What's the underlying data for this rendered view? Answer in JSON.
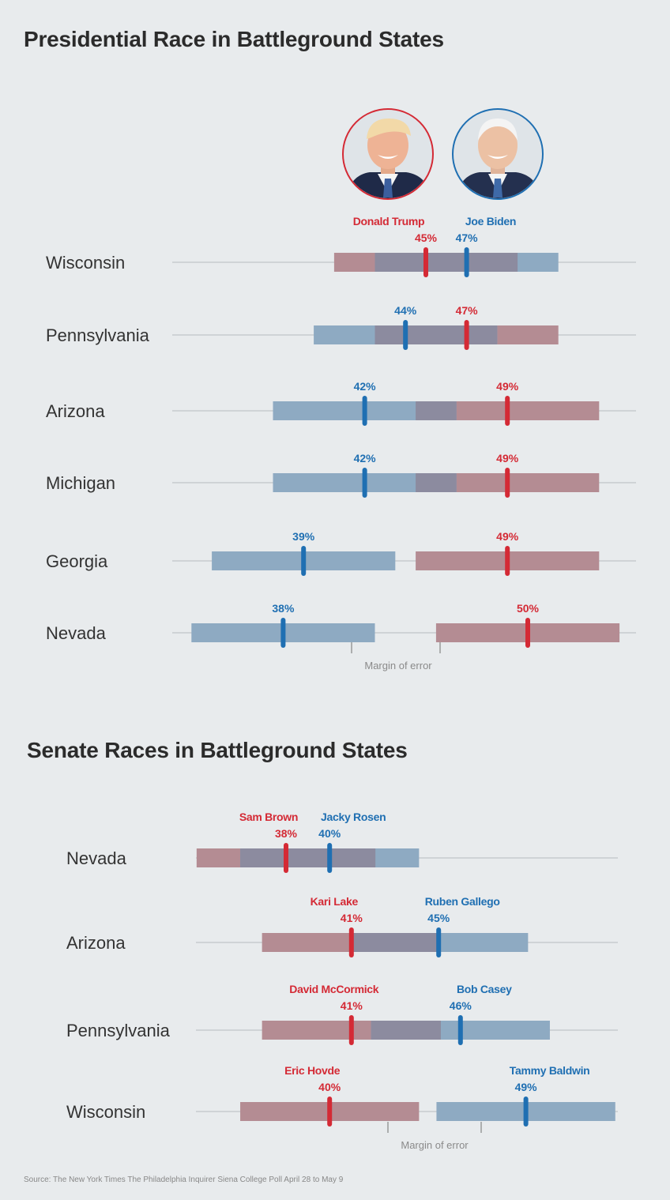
{
  "colors": {
    "republican": "#d42a35",
    "democrat": "#1f6fb2",
    "rep_bar": "#b48c93",
    "dem_bar": "#8eaac2",
    "overlap": "#8c8b9f",
    "axis": "#cfd3d6",
    "background": "#e8ebed"
  },
  "presidential": {
    "title": "Presidential Race in Battleground States",
    "candidates": [
      {
        "name": "Donald Trump",
        "party": "R",
        "image": "trump-photo"
      },
      {
        "name": "Joe Biden",
        "party": "D",
        "image": "biden-photo"
      }
    ],
    "margin_of_error_label": "Margin of error",
    "chart_data": {
      "type": "range-dot",
      "series": [
        {
          "name": "Donald Trump",
          "party": "R"
        },
        {
          "name": "Joe Biden",
          "party": "D"
        }
      ],
      "rows": [
        {
          "state": "Wisconsin",
          "rep": 45,
          "dem": 47
        },
        {
          "state": "Pennsylvania",
          "rep": 47,
          "dem": 44
        },
        {
          "state": "Arizona",
          "rep": 49,
          "dem": 42
        },
        {
          "state": "Michigan",
          "rep": 49,
          "dem": 42
        },
        {
          "state": "Georgia",
          "rep": 49,
          "dem": 39
        },
        {
          "state": "Nevada",
          "rep": 50,
          "dem": 38
        }
      ]
    }
  },
  "senate": {
    "title": "Senate Races in Battleground States",
    "margin_of_error_label": "Margin of error",
    "chart_data": {
      "type": "range-dot",
      "rows": [
        {
          "state": "Nevada",
          "rep_name": "Sam Brown",
          "rep": 38,
          "dem_name": "Jacky Rosen",
          "dem": 40
        },
        {
          "state": "Arizona",
          "rep_name": "Kari Lake",
          "rep": 41,
          "dem_name": "Ruben Gallego",
          "dem": 45
        },
        {
          "state": "Pennsylvania",
          "rep_name": "David McCormick",
          "rep": 41,
          "dem_name": "Bob Casey",
          "dem": 46
        },
        {
          "state": "Wisconsin",
          "rep_name": "Eric Hovde",
          "rep": 40,
          "dem_name": "Tammy Baldwin",
          "dem": 49
        }
      ]
    }
  },
  "source": "Source: The New York Times The Philadelphia Inquirer Siena College Poll April 28 to May 9"
}
